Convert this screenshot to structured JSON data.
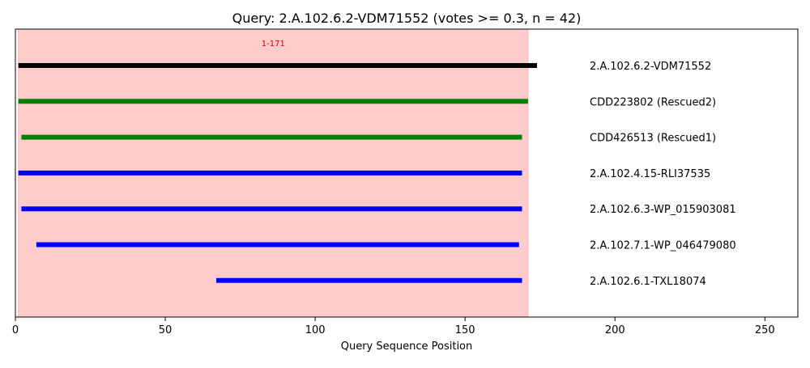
{
  "chart_data": {
    "type": "bar",
    "title": "Query: 2.A.102.6.2-VDM71552 (votes >= 0.3, n = 42)",
    "xlabel": "Query Sequence Position",
    "ylabel": "",
    "xlim": [
      0,
      261
    ],
    "x_ticks": [
      0,
      50,
      100,
      150,
      200,
      250
    ],
    "grid": false,
    "highlight_region": {
      "start": 1,
      "end": 171,
      "label": "1-171",
      "color": "#ffcccc"
    },
    "series": [
      {
        "name": "2.A.102.6.2-VDM71552",
        "start": 1,
        "end": 174,
        "color": "#000000"
      },
      {
        "name": "CDD223802 (Rescued2)",
        "start": 1,
        "end": 171,
        "color": "#008000"
      },
      {
        "name": "CDD426513 (Rescued1)",
        "start": 2,
        "end": 169,
        "color": "#008000"
      },
      {
        "name": "2.A.102.4.15-RLI37535",
        "start": 1,
        "end": 169,
        "color": "#0000ff"
      },
      {
        "name": "2.A.102.6.3-WP_015903081",
        "start": 2,
        "end": 169,
        "color": "#0000ff"
      },
      {
        "name": "2.A.102.7.1-WP_046479080",
        "start": 7,
        "end": 168,
        "color": "#0000ff"
      },
      {
        "name": "2.A.102.6.1-TXL18074",
        "start": 67,
        "end": 169,
        "color": "#0000ff"
      }
    ]
  }
}
